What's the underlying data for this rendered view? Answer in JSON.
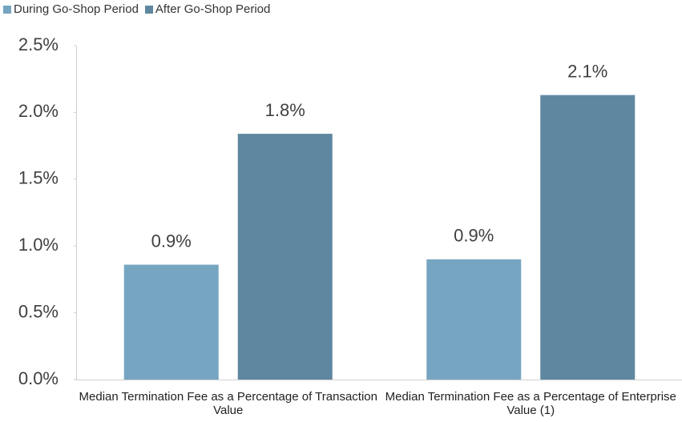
{
  "chart_data": {
    "type": "bar",
    "categories": [
      "Median Termination Fee as a Percentage of Transaction Value",
      "Median Termination Fee as a Percentage of Enterprise Value (1)"
    ],
    "series": [
      {
        "name": "During Go-Shop Period",
        "color": "#75a5c1",
        "values": [
          0.86,
          0.9
        ],
        "value_labels": [
          "0.9%",
          "0.9%"
        ]
      },
      {
        "name": "After Go-Shop Period",
        "color": "#5f87a0",
        "values": [
          1.84,
          2.13
        ],
        "value_labels": [
          "1.8%",
          "2.1%"
        ]
      }
    ],
    "ylim": [
      0,
      2.5
    ],
    "yticks": [
      {
        "value": 0,
        "label": "0.0%"
      },
      {
        "value": 0.5,
        "label": "0.5%"
      },
      {
        "value": 1,
        "label": "1.0%"
      },
      {
        "value": 1.5,
        "label": "1.5%"
      },
      {
        "value": 2,
        "label": "2.0%"
      },
      {
        "value": 2.5,
        "label": "2.5%"
      }
    ],
    "legend": "top-left"
  }
}
